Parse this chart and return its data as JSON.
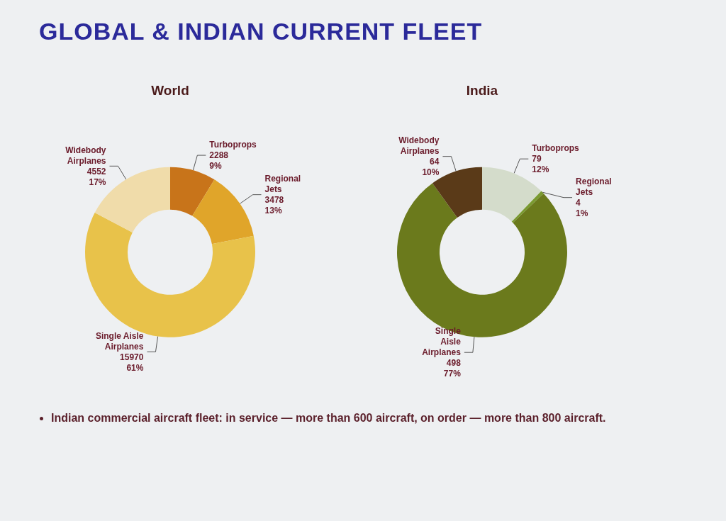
{
  "chart_data": [
    {
      "type": "other",
      "title": "GLOBAL & INDIAN CURRENT FLEET"
    },
    {
      "type": "donut",
      "title": "World",
      "categories": [
        "Turboprops",
        "Regional\nJets",
        "Single Aisle\nAirplanes",
        "Widebody\nAirplanes"
      ],
      "values": [
        2288,
        3478,
        15970,
        4552
      ],
      "colors": [
        "#c8741a",
        "#e0a52a",
        "#e8c24a",
        "#f0dcaa"
      ],
      "value_labels": [
        "2288\n9%",
        "3478\n13%",
        "15970\n61%",
        "4552\n17%"
      ]
    },
    {
      "type": "donut",
      "title": "India",
      "categories": [
        "Turboprops",
        "Regional\nJets",
        "Single\nAisle\nAirplanes",
        "Widebody\nAirplanes"
      ],
      "values": [
        79,
        4,
        498,
        64
      ],
      "colors": [
        "#d4dccb",
        "#7a9a30",
        "#6b7a1c",
        "#5a3a18"
      ],
      "value_labels": [
        "79\n12%",
        "4\n1%",
        "498\n77%",
        "64\n10%"
      ]
    },
    {
      "type": "other",
      "annotations": [
        "Indian commercial aircraft fleet: in service — more than 600 aircraft, on order — more than 800 aircraft."
      ]
    }
  ]
}
